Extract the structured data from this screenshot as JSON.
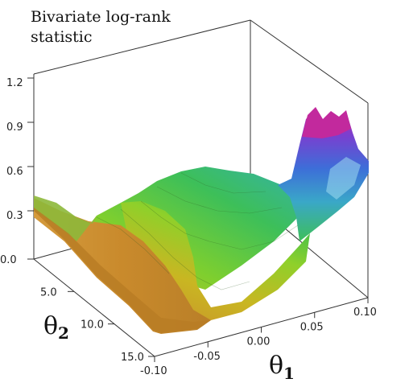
{
  "chart_data": {
    "type": "surface",
    "title_line1": "Bivariate log-rank",
    "title_line2": "statistic",
    "zlabel": "",
    "xlabel_symbol": "θ",
    "xlabel_sub": "1",
    "ylabel_symbol": "θ",
    "ylabel_sub": "2",
    "z_ticks": [
      "1.2",
      "0.9",
      "0.6",
      "0.3"
    ],
    "theta1_ticks": [
      "-0.10",
      "-0.05",
      "0.00",
      "0.05",
      "0.10"
    ],
    "theta2_ticks": [
      "0.0",
      "5.0",
      "10.0",
      "15.0"
    ],
    "theta1_range": [
      -0.1,
      0.1
    ],
    "theta2_range": [
      0.0,
      15.0
    ],
    "z_range": [
      0.0,
      1.2
    ],
    "colorscale": [
      "#c98a2c",
      "#e0a020",
      "#c9c21f",
      "#8fcf2a",
      "#3fbf4a",
      "#39b6a0",
      "#3f7fd9",
      "#6a3fd0",
      "#c02aa8"
    ],
    "grid": false,
    "peak": {
      "theta1": 0.06,
      "theta2": 0.0,
      "z": 1.12
    }
  }
}
